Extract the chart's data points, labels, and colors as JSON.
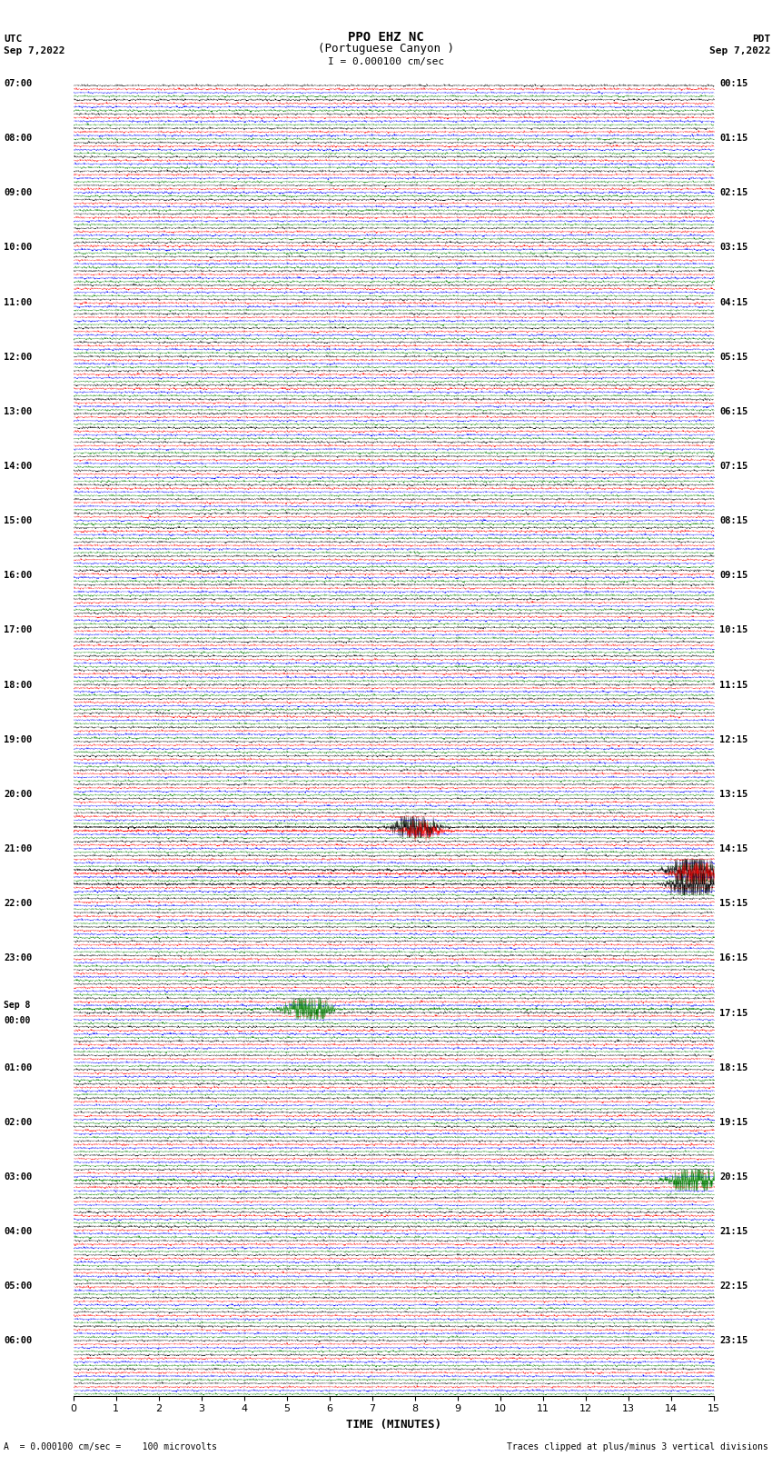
{
  "title_line1": "PPO EHZ NC",
  "title_line2": "(Portuguese Canyon )",
  "scale_bar_text": "I = 0.000100 cm/sec",
  "utc_label": "UTC",
  "utc_date": "Sep 7,2022",
  "pdt_label": "PDT",
  "pdt_date": "Sep 7,2022",
  "xlabel": "TIME (MINUTES)",
  "footer_left": "A  = 0.000100 cm/sec =    100 microvolts",
  "footer_right": "Traces clipped at plus/minus 3 vertical divisions",
  "trace_colors": [
    "black",
    "red",
    "blue",
    "green"
  ],
  "n_rows": 92,
  "n_traces_per_row": 4,
  "x_tick_max": 15,
  "fig_width": 8.5,
  "fig_height": 16.13,
  "background_color": "white",
  "left_label_times_utc": [
    "07:00",
    "08:00",
    "09:00",
    "10:00",
    "11:00",
    "12:00",
    "13:00",
    "14:00",
    "15:00",
    "16:00",
    "17:00",
    "18:00",
    "19:00",
    "20:00",
    "21:00",
    "22:00",
    "23:00",
    "Sep 8\n00:00",
    "01:00",
    "02:00",
    "03:00",
    "04:00",
    "05:00",
    "06:00"
  ],
  "right_label_times_pdt": [
    "00:15",
    "01:15",
    "02:15",
    "03:15",
    "04:15",
    "05:15",
    "06:15",
    "07:15",
    "08:15",
    "09:15",
    "10:15",
    "11:15",
    "12:15",
    "13:15",
    "14:15",
    "15:15",
    "16:15",
    "17:15",
    "18:15",
    "19:15",
    "20:15",
    "21:15",
    "22:15",
    "23:15"
  ]
}
